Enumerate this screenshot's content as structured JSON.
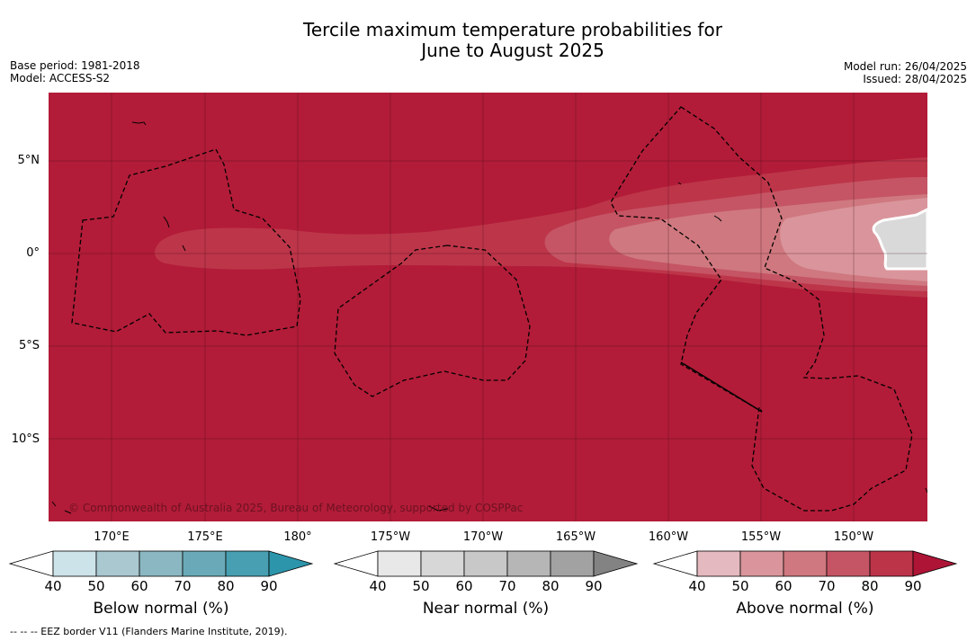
{
  "title": {
    "line1": "Tercile maximum temperature probabilities for",
    "line2": "June to August 2025"
  },
  "meta_left": {
    "base_period": "Base period: 1981-2018",
    "model": "Model: ACCESS-S2"
  },
  "meta_right": {
    "model_run": "Model run: 26/04/2025",
    "issued": "Issued: 28/04/2025"
  },
  "map": {
    "lat_labels": [
      "5°N",
      "0°",
      "5°S",
      "10°S"
    ],
    "lon_labels": [
      "170°E",
      "175°E",
      "180°",
      "175°W",
      "170°W",
      "165°W",
      "160°W",
      "155°W",
      "150°W"
    ],
    "lat_range": [
      -14.3,
      8.5
    ],
    "lon_range": [
      166.7,
      213.9
    ],
    "copyright": "© Commonwealth of Australia 2025, Bureau of Meteorology, supported by COSPPac",
    "colors": {
      "above_90": "#b21c38",
      "above_80": "#bd3549",
      "above_70": "#c55564",
      "above_60": "#cf787f",
      "above_50": "#d9959b",
      "near_normal": "#d9d9d9"
    }
  },
  "colorbars": [
    {
      "label": "Below normal (%)",
      "ticks": [
        "40",
        "50",
        "60",
        "70",
        "80",
        "90"
      ],
      "colors": [
        "#ffffff",
        "#cde3ea",
        "#a9c8d0",
        "#8bb7c2",
        "#6aaab8",
        "#479fb1",
        "#2c95ab"
      ]
    },
    {
      "label": "Near normal (%)",
      "ticks": [
        "40",
        "50",
        "60",
        "70",
        "80",
        "90"
      ],
      "colors": [
        "#ffffff",
        "#e8e8e8",
        "#d7d7d7",
        "#c8c8c8",
        "#b6b6b6",
        "#a2a2a2",
        "#838383"
      ]
    },
    {
      "label": "Above normal (%)",
      "ticks": [
        "40",
        "50",
        "60",
        "70",
        "80",
        "90"
      ],
      "colors": [
        "#ffffff",
        "#e4b9bf",
        "#d9959b",
        "#cf787f",
        "#c55564",
        "#bb3448",
        "#ad1435"
      ]
    }
  ],
  "footnote": "--  --  -- EEZ border V11 (Flanders Marine Institute, 2019)."
}
